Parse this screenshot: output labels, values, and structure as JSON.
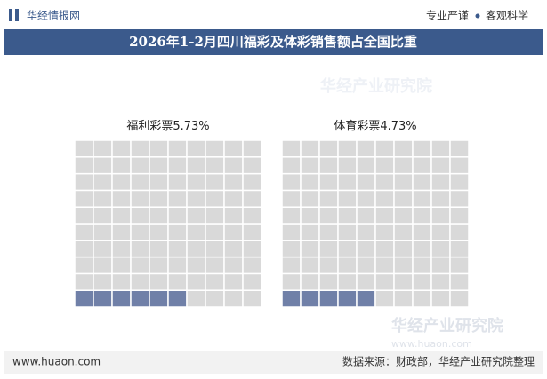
{
  "header": {
    "brand": "华经情报网",
    "slogan_left": "专业严谨",
    "slogan_right": "客观科学"
  },
  "title": "2026年1-2月四川福彩及体彩销售额占全国比重",
  "chart_data": [
    {
      "type": "waffle",
      "name": "福利彩票",
      "value": 5.73,
      "value_label": "5.73%",
      "color": "#7080a8",
      "empty_color": "#d9d9d9"
    },
    {
      "type": "waffle",
      "name": "体育彩票",
      "value": 4.73,
      "value_label": "4.73%",
      "color": "#7080a8",
      "empty_color": "#d9d9d9"
    }
  ],
  "watermark": {
    "name": "华经产业研究院",
    "url": "www.huaon.com"
  },
  "footer": {
    "website": "www.huaon.com",
    "source": "数据来源：财政部，华经产业研究院整理"
  }
}
